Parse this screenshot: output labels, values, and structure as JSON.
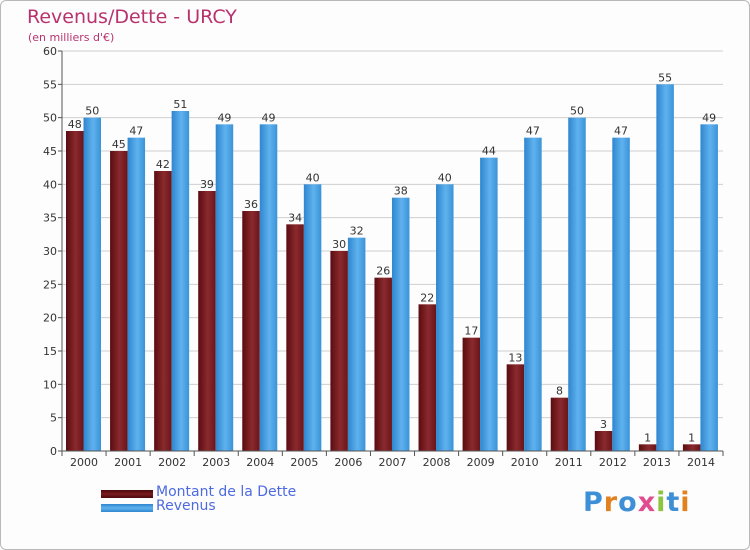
{
  "header": {
    "title": "Revenus/Dette - URCY",
    "subtitle": "(en milliers d'€)"
  },
  "colors": {
    "debt": "#7a1b1f",
    "revenue": "#4aa3e2",
    "title": "#b8326e",
    "legend_text": "#4d6ae0"
  },
  "chart_data": {
    "type": "bar",
    "title": "Revenus/Dette - URCY",
    "subtitle": "(en milliers d'€)",
    "xlabel": "",
    "ylabel": "",
    "ylim": [
      0,
      60
    ],
    "ytick_step": 5,
    "grid": true,
    "categories": [
      "2000",
      "2001",
      "2002",
      "2003",
      "2004",
      "2005",
      "2006",
      "2007",
      "2008",
      "2009",
      "2010",
      "2011",
      "2012",
      "2013",
      "2014"
    ],
    "series": [
      {
        "name": "Montant de la Dette",
        "color": "#7a1b1f",
        "values": [
          48,
          45,
          42,
          39,
          36,
          34,
          30,
          26,
          22,
          17,
          13,
          8,
          3,
          1,
          1
        ]
      },
      {
        "name": "Revenus",
        "color": "#4aa3e2",
        "values": [
          50,
          47,
          51,
          49,
          49,
          40,
          32,
          38,
          40,
          44,
          47,
          50,
          47,
          55,
          49
        ]
      }
    ]
  },
  "legend": {
    "items": [
      {
        "label": "Montant de la Dette",
        "color": "#7a1b1f"
      },
      {
        "label": "Revenus",
        "color": "#4aa3e2"
      }
    ]
  },
  "logo": {
    "text": "Proxiti"
  }
}
